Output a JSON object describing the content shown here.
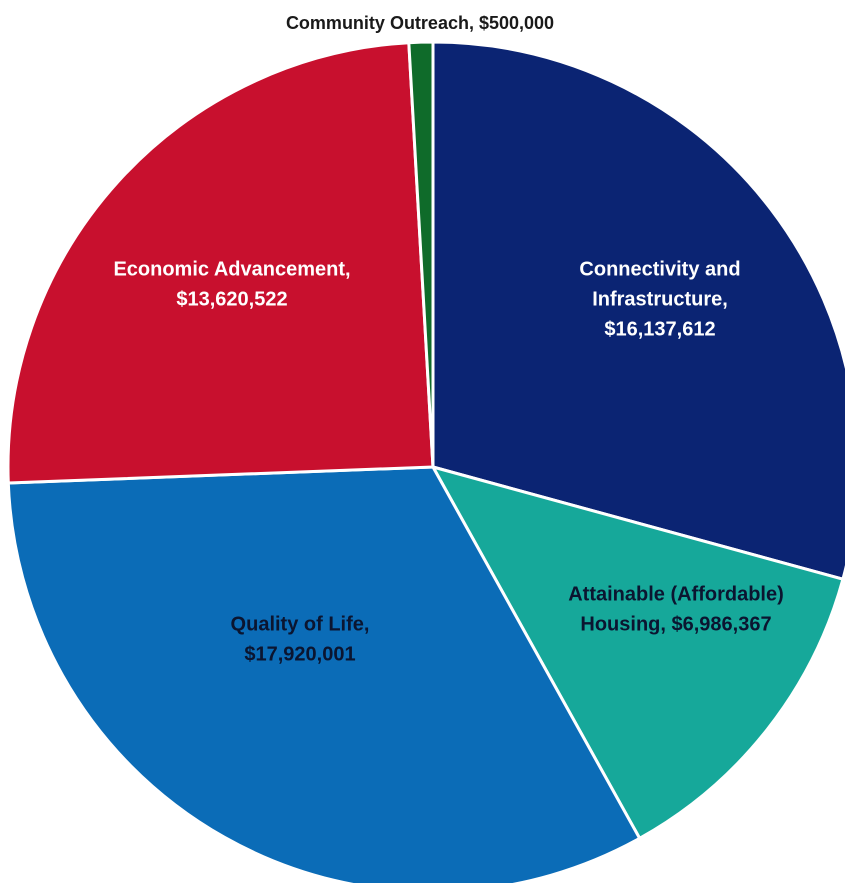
{
  "chart_data": {
    "type": "pie",
    "title": "",
    "start_angle_deg": 0,
    "direction": "clockwise",
    "slices": [
      {
        "label": "Connectivity and Infrastructure",
        "value": 16137612,
        "color": "#0b2473",
        "text_color": "#ffffff",
        "lines": [
          "Connectivity and",
          "Infrastructure,",
          "$16,137,612"
        ]
      },
      {
        "label": "Attainable (Affordable) Housing",
        "value": 6986367,
        "color": "#16a89a",
        "text_color": "#0b1530",
        "lines": [
          "Attainable (Affordable)",
          "Housing, $6,986,367"
        ]
      },
      {
        "label": "Quality of Life",
        "value": 17920001,
        "color": "#0b6cb7",
        "text_color": "#0b1530",
        "lines": [
          "Quality of Life,",
          "$17,920,001"
        ]
      },
      {
        "label": "Economic Advancement",
        "value": 13620522,
        "color": "#c8102e",
        "text_color": "#ffffff",
        "lines": [
          "Economic Advancement,",
          "$13,620,522"
        ]
      },
      {
        "label": "Community Outreach",
        "value": 500000,
        "color": "#0f6b2a",
        "text_color": "#1a1a1a",
        "lines": [
          "Community Outreach, $500,000"
        ],
        "label_outside": true
      }
    ]
  }
}
